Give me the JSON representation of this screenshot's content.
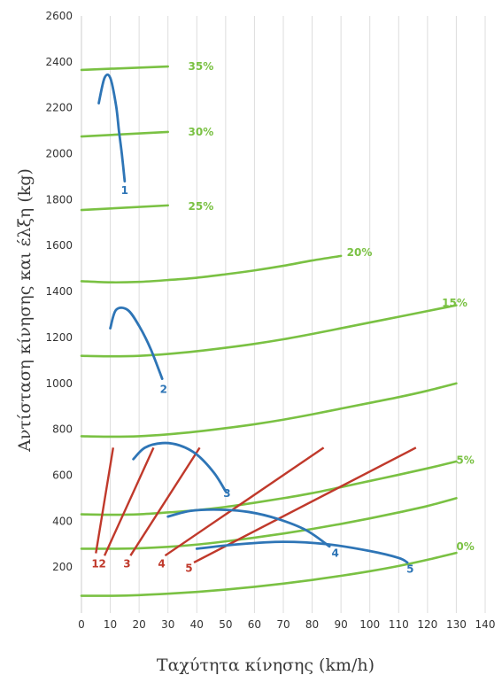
{
  "chart_data": {
    "type": "line",
    "xlabel": "Ταχύτητα κίνησης (km/h)",
    "ylabel": "Αντίσταση κίνησης και έλξη (kg)",
    "xlim": [
      0,
      140
    ],
    "ylim": [
      0,
      2600
    ],
    "x_ticks": [
      "0",
      "10",
      "20",
      "30",
      "40",
      "50",
      "60",
      "70",
      "80",
      "90",
      "100",
      "110",
      "120",
      "130",
      "140"
    ],
    "y_ticks": [
      "200",
      "400",
      "600",
      "800",
      "1000",
      "1200",
      "1400",
      "1600",
      "1800",
      "2000",
      "2200",
      "2400",
      "2600"
    ],
    "grid": "vertical",
    "colors": {
      "resistance": "#7ac143",
      "traction": "#2e75b6",
      "line": "#c0392b",
      "grid": "#dddddd"
    },
    "resistance_series": [
      {
        "label": "35%",
        "x": [
          0,
          30
        ],
        "y": [
          2365,
          2380
        ],
        "label_at": [
          37,
          2380
        ]
      },
      {
        "label": "30%",
        "x": [
          0,
          30
        ],
        "y": [
          2075,
          2095
        ],
        "label_at": [
          37,
          2095
        ]
      },
      {
        "label": "25%",
        "x": [
          0,
          30
        ],
        "y": [
          1755,
          1775
        ],
        "label_at": [
          37,
          1770
        ]
      },
      {
        "label": "20%",
        "x": [
          0,
          10,
          20,
          30,
          40,
          50,
          60,
          70,
          80,
          90
        ],
        "y": [
          1445,
          1440,
          1442,
          1450,
          1460,
          1475,
          1492,
          1512,
          1535,
          1555
        ],
        "label_at": [
          92,
          1570
        ]
      },
      {
        "label": "15%",
        "x": [
          0,
          10,
          20,
          30,
          40,
          50,
          60,
          70,
          80,
          90,
          100,
          110,
          120,
          130
        ],
        "y": [
          1120,
          1118,
          1120,
          1128,
          1140,
          1155,
          1172,
          1192,
          1215,
          1240,
          1265,
          1290,
          1315,
          1340
        ],
        "label_at": [
          125,
          1350
        ]
      },
      {
        "label": "",
        "x": [
          0,
          10,
          20,
          30,
          40,
          50,
          60,
          70,
          80,
          90,
          100,
          110,
          120,
          130
        ],
        "y": [
          770,
          768,
          770,
          778,
          790,
          805,
          822,
          842,
          865,
          890,
          915,
          940,
          968,
          1000
        ],
        "label_at": null
      },
      {
        "label": "5%",
        "x": [
          0,
          10,
          20,
          30,
          40,
          50,
          60,
          70,
          80,
          90,
          100,
          110,
          120,
          130
        ],
        "y": [
          430,
          428,
          430,
          438,
          448,
          462,
          480,
          500,
          522,
          548,
          575,
          602,
          630,
          660
        ],
        "label_at": [
          130,
          665
        ]
      },
      {
        "label": "",
        "x": [
          0,
          10,
          20,
          30,
          40,
          50,
          60,
          70,
          80,
          90,
          100,
          110,
          120,
          130
        ],
        "y": [
          280,
          280,
          282,
          288,
          298,
          312,
          328,
          346,
          366,
          388,
          412,
          438,
          466,
          500
        ],
        "label_at": null
      },
      {
        "label": "0%",
        "x": [
          0,
          10,
          20,
          30,
          40,
          50,
          60,
          70,
          80,
          90,
          100,
          110,
          120,
          130
        ],
        "y": [
          75,
          75,
          78,
          84,
          92,
          102,
          114,
          128,
          144,
          162,
          182,
          205,
          232,
          262
        ],
        "label_at": [
          130,
          290
        ]
      }
    ],
    "traction_curves": [
      {
        "label": "1",
        "x": [
          6,
          8,
          10,
          12,
          13,
          14,
          15
        ],
        "y": [
          2220,
          2330,
          2330,
          2210,
          2100,
          2000,
          1880
        ],
        "label_at": [
          15,
          1840
        ]
      },
      {
        "label": "2",
        "x": [
          10,
          12,
          16,
          20,
          24,
          28
        ],
        "y": [
          1240,
          1320,
          1320,
          1250,
          1150,
          1020
        ],
        "label_at": [
          28.5,
          975
        ]
      },
      {
        "label": "3",
        "x": [
          18,
          22,
          28,
          34,
          40,
          46,
          50
        ],
        "y": [
          670,
          720,
          740,
          730,
          690,
          610,
          530
        ],
        "label_at": [
          50.5,
          520
        ]
      },
      {
        "label": "4",
        "x": [
          30,
          38,
          48,
          58,
          68,
          78,
          86
        ],
        "y": [
          420,
          445,
          450,
          440,
          410,
          360,
          290
        ],
        "label_at": [
          88,
          260
        ]
      },
      {
        "label": "5",
        "x": [
          40,
          55,
          70,
          85,
          100,
          110,
          113
        ],
        "y": [
          280,
          300,
          310,
          300,
          270,
          240,
          220
        ],
        "label_at": [
          114,
          190
        ]
      }
    ],
    "red_lines": [
      {
        "label": "1",
        "x": [
          5,
          11
        ],
        "y": [
          260,
          720
        ],
        "label_at": [
          3.5,
          215
        ]
      },
      {
        "label": "2",
        "x": [
          8,
          25
        ],
        "y": [
          250,
          720
        ],
        "label_at": [
          6,
          215
        ]
      },
      {
        "label": "3",
        "x": [
          17,
          41
        ],
        "y": [
          250,
          720
        ],
        "label_at": [
          14.5,
          215
        ]
      },
      {
        "label": "4",
        "x": [
          29,
          84
        ],
        "y": [
          250,
          720
        ],
        "label_at": [
          26.5,
          215
        ]
      },
      {
        "label": "5",
        "x": [
          39,
          116
        ],
        "y": [
          220,
          720
        ],
        "label_at": [
          36,
          195
        ]
      }
    ]
  }
}
